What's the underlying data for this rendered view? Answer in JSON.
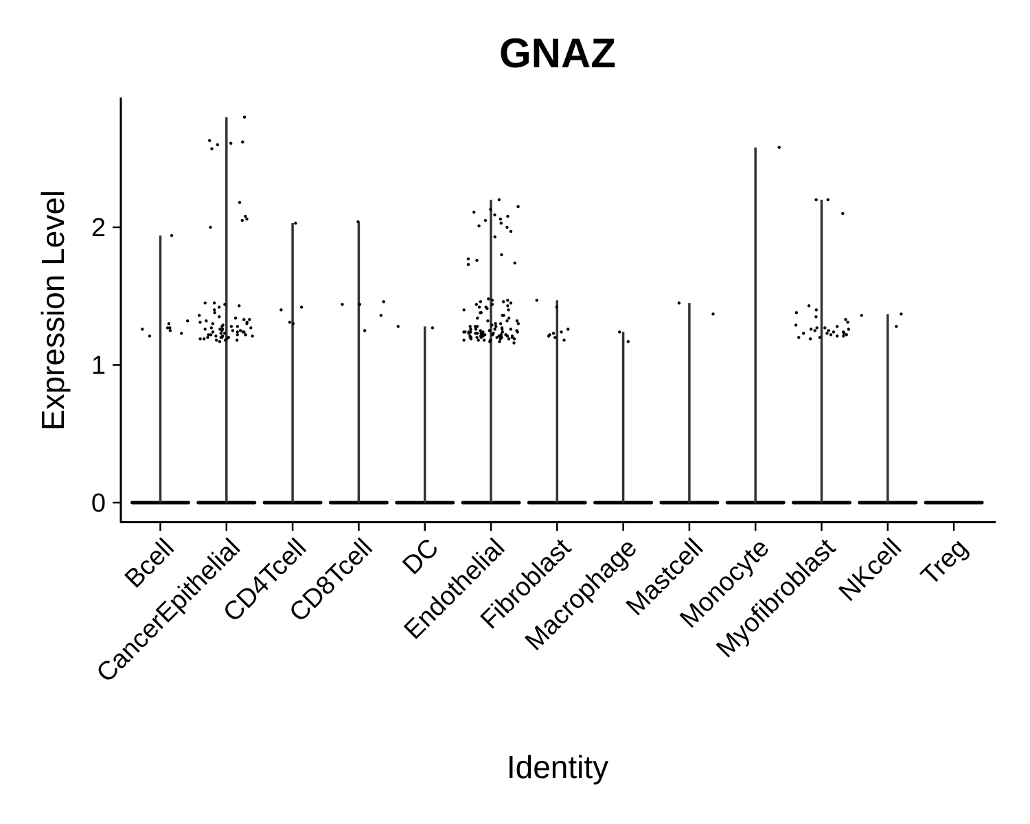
{
  "chart_data": {
    "type": "violin",
    "title": "GNAZ",
    "xlabel": "Identity",
    "ylabel": "Expression Level",
    "ylim": [
      -0.14,
      2.93
    ],
    "yticks": [
      0,
      1,
      2
    ],
    "grid": false,
    "legend": "none",
    "colors": {
      "points": "#000000",
      "violin": "#333333",
      "axis": "#000000"
    },
    "categories": [
      "Bcell",
      "CancerEpithelial",
      "CD4Tcell",
      "CD8Tcell",
      "DC",
      "Endothelial",
      "Fibroblast",
      "Macrophage",
      "Mastcell",
      "Monocyte",
      "Myofibroblast",
      "NKcell",
      "Treg"
    ],
    "max_values": [
      1.94,
      2.8,
      2.03,
      2.04,
      1.28,
      2.2,
      1.47,
      1.24,
      1.45,
      2.58,
      2.2,
      1.37,
      0
    ],
    "points": [
      {
        "category": "Bcell",
        "values": [
          1.3,
          1.21,
          1.27,
          1.32,
          1.25,
          1.27,
          1.26,
          1.23,
          1.94
        ]
      },
      {
        "category": "CancerEpithelial",
        "values": [
          2.8,
          2.18,
          2.6,
          2.62,
          2.63,
          2.61,
          2.57,
          2.0,
          2.05,
          2.06,
          2.08,
          1.45,
          1.44,
          1.43,
          1.42,
          1.45,
          1.35,
          1.33,
          1.3,
          1.28,
          1.26,
          1.24,
          1.22,
          1.2,
          1.18,
          1.17,
          1.19,
          1.21,
          1.23,
          1.25,
          1.27,
          1.29,
          1.31,
          1.33,
          1.21,
          1.2,
          1.22,
          1.24,
          1.26,
          1.28,
          1.19,
          1.18,
          1.2,
          1.22,
          1.24,
          1.26,
          1.23,
          1.25,
          1.27,
          1.21,
          1.19,
          1.3,
          1.32,
          1.34,
          1.36,
          1.38,
          1.4,
          1.2,
          1.22,
          1.24,
          1.18,
          1.2,
          1.22,
          1.25,
          1.28,
          1.31
        ]
      },
      {
        "category": "CD4Tcell",
        "values": [
          2.03,
          1.31,
          1.3,
          1.42,
          1.4
        ]
      },
      {
        "category": "CD8Tcell",
        "values": [
          2.04,
          1.46,
          1.44,
          1.44,
          1.36,
          1.25
        ]
      },
      {
        "category": "DC",
        "values": [
          1.28,
          1.27
        ]
      },
      {
        "category": "Endothelial",
        "values": [
          2.2,
          2.05,
          2.08,
          2.03,
          2.01,
          2.0,
          2.15,
          2.13,
          2.11,
          2.09,
          2.06,
          1.97,
          1.93,
          1.8,
          1.77,
          1.74,
          1.73,
          1.76,
          1.48,
          1.47,
          1.46,
          1.45,
          1.44,
          1.43,
          1.42,
          1.41,
          1.4,
          1.38,
          1.36,
          1.34,
          1.32,
          1.3,
          1.28,
          1.26,
          1.25,
          1.24,
          1.23,
          1.22,
          1.21,
          1.2,
          1.19,
          1.18,
          1.17,
          1.16,
          1.22,
          1.24,
          1.26,
          1.28,
          1.3,
          1.32,
          1.2,
          1.22,
          1.24,
          1.18,
          1.2,
          1.22,
          1.21,
          1.23,
          1.25,
          1.27,
          1.29,
          1.19,
          1.21,
          1.23,
          1.25,
          1.17,
          1.19,
          1.21,
          1.23,
          1.18,
          1.2,
          1.22,
          1.24,
          1.26,
          1.28,
          1.2,
          1.22,
          1.24,
          1.26,
          1.21,
          1.23,
          1.25,
          1.19,
          1.21,
          1.23,
          1.2,
          1.22,
          1.24,
          1.26,
          1.28,
          1.3,
          1.32,
          1.34,
          1.36,
          1.38,
          1.4,
          1.42,
          1.44,
          1.46,
          1.47,
          1.2,
          1.22,
          1.18,
          1.2,
          1.22,
          1.24
        ]
      },
      {
        "category": "Fibroblast",
        "values": [
          1.47,
          1.42,
          1.2,
          1.22,
          1.26,
          1.18,
          1.24,
          1.21,
          1.23
        ]
      },
      {
        "category": "Macrophage",
        "values": [
          1.24,
          1.17
        ]
      },
      {
        "category": "Mastcell",
        "values": [
          1.45,
          1.37
        ]
      },
      {
        "category": "Monocyte",
        "values": [
          2.58
        ]
      },
      {
        "category": "Myofibroblast",
        "values": [
          2.2,
          2.2,
          2.1,
          1.43,
          1.38,
          1.4,
          1.35,
          1.33,
          1.31,
          1.29,
          1.27,
          1.25,
          1.23,
          1.21,
          1.19,
          1.22,
          1.24,
          1.26,
          1.28,
          1.2,
          1.22,
          1.24,
          1.26,
          1.21,
          1.23,
          1.25,
          1.27,
          1.2,
          1.23
        ]
      },
      {
        "category": "NKcell",
        "values": [
          1.37,
          1.36,
          1.28
        ]
      },
      {
        "category": "Treg",
        "values": []
      }
    ]
  }
}
